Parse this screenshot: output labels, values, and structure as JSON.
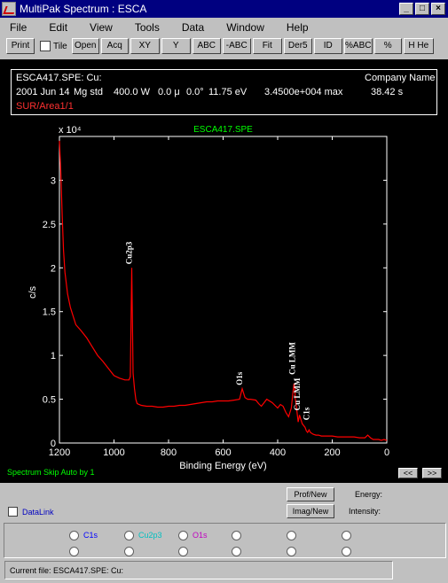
{
  "window": {
    "title": "MultiPak Spectrum : ESCA",
    "controls": [
      "_",
      "□",
      "×"
    ]
  },
  "menu": [
    "File",
    "Edit",
    "View",
    "Tools",
    "Data",
    "Window",
    "Help"
  ],
  "toolbar": {
    "print": "Print",
    "tile": "Tile",
    "buttons": [
      "Open",
      "Acq",
      "XY",
      "Y",
      "ABC",
      "-ABC",
      "Fit",
      "Der5",
      "ID",
      "%ABC",
      "%",
      "H He"
    ]
  },
  "info": {
    "file": "ESCA417.SPE: Cu:",
    "company": "Company Name",
    "date": "2001 Jun 14",
    "source": "Mg std",
    "power": "400.0 W",
    "size": "0.0 μ",
    "angle": "0.0°",
    "pass_energy": "11.75 eV",
    "max": "3.4500e+004 max",
    "time": "38.42 s",
    "area": "SUR/Area1/1"
  },
  "chart_data": {
    "type": "line",
    "title": "ESCA417.SPE",
    "xlabel": "Binding Energy (eV)",
    "ylabel": "c/s",
    "y_multiplier": "x 10⁴",
    "xlim": [
      1200,
      0
    ],
    "ylim": [
      0,
      3.5
    ],
    "xticks": [
      1200,
      1000,
      800,
      600,
      400,
      200,
      0
    ],
    "yticks": [
      0,
      0.5,
      1,
      1.5,
      2,
      2.5,
      3
    ],
    "grid": false,
    "series": [
      {
        "color": "#ff0000",
        "x": [
          1200,
          1195,
          1190,
          1185,
          1180,
          1170,
          1160,
          1150,
          1140,
          1120,
          1100,
          1080,
          1060,
          1040,
          1020,
          1000,
          980,
          960,
          945,
          940,
          935,
          930,
          925,
          920,
          915,
          900,
          880,
          860,
          840,
          820,
          800,
          780,
          760,
          740,
          720,
          700,
          680,
          660,
          640,
          620,
          600,
          580,
          560,
          540,
          530,
          520,
          510,
          500,
          480,
          470,
          460,
          440,
          420,
          400,
          390,
          380,
          370,
          360,
          350,
          345,
          340,
          338,
          335,
          330,
          325,
          320,
          310,
          300,
          295,
          290,
          285,
          280,
          270,
          260,
          250,
          240,
          220,
          200,
          180,
          160,
          140,
          120,
          100,
          80,
          70,
          60,
          50,
          40,
          30,
          20,
          10,
          0
        ],
        "y": [
          3.45,
          3.1,
          2.6,
          2.2,
          1.95,
          1.7,
          1.55,
          1.45,
          1.35,
          1.28,
          1.2,
          1.1,
          1.0,
          0.93,
          0.85,
          0.77,
          0.74,
          0.72,
          0.72,
          0.76,
          2.0,
          0.8,
          0.62,
          0.5,
          0.45,
          0.43,
          0.42,
          0.42,
          0.41,
          0.41,
          0.42,
          0.42,
          0.43,
          0.43,
          0.44,
          0.45,
          0.46,
          0.47,
          0.47,
          0.48,
          0.48,
          0.48,
          0.49,
          0.5,
          0.62,
          0.52,
          0.5,
          0.5,
          0.49,
          0.45,
          0.42,
          0.5,
          0.46,
          0.4,
          0.44,
          0.42,
          0.35,
          0.3,
          0.4,
          0.55,
          0.68,
          0.64,
          0.5,
          0.38,
          0.24,
          0.32,
          0.22,
          0.18,
          0.14,
          0.12,
          0.15,
          0.12,
          0.1,
          0.09,
          0.09,
          0.08,
          0.08,
          0.08,
          0.07,
          0.07,
          0.07,
          0.07,
          0.06,
          0.06,
          0.09,
          0.06,
          0.04,
          0.04,
          0.04,
          0.03,
          0.04,
          0.03
        ]
      }
    ],
    "annotations": [
      {
        "label": "Cu2p3",
        "x": 935,
        "y": 2.0
      },
      {
        "label": "O1s",
        "x": 530,
        "y": 0.62
      },
      {
        "label": "Cu LMM",
        "x": 337,
        "y": 0.74
      },
      {
        "label": "Cu LMM",
        "x": 318,
        "y": 0.33
      },
      {
        "label": "C1s",
        "x": 285,
        "y": 0.22
      }
    ]
  },
  "plot_status": "Spectrum Skip Auto by 1",
  "nav": {
    "prev": "<<",
    "next": ">>"
  },
  "controls": {
    "prof_new": "Prof/New",
    "imag_new": "Imag/New",
    "energy_label": "Energy:",
    "intensity_label": "Intensity:",
    "datalink": "DataLink"
  },
  "regions": [
    {
      "label": "C1s",
      "color": "#0000ff"
    },
    {
      "label": "Cu2p3",
      "color": "#00c0c0"
    },
    {
      "label": "O1s",
      "color": "#c000c0"
    }
  ],
  "current_file": "Current file:  ESCA417.SPE: Cu:"
}
